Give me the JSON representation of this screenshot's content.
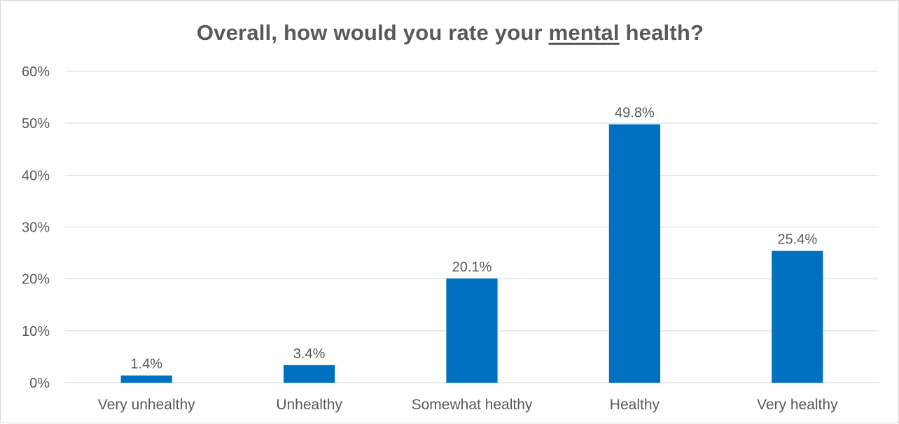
{
  "chart_data": {
    "type": "bar",
    "title_parts": {
      "before": "Overall, how would you rate your ",
      "emphasis": "mental",
      "after": " health?"
    },
    "categories": [
      "Very unhealthy",
      "Unhealthy",
      "Somewhat healthy",
      "Healthy",
      "Very healthy"
    ],
    "values": [
      1.4,
      3.4,
      20.1,
      49.8,
      25.4
    ],
    "data_labels": [
      "1.4%",
      "3.4%",
      "20.1%",
      "49.8%",
      "25.4%"
    ],
    "ylim": [
      0,
      60
    ],
    "yticks": [
      0,
      10,
      20,
      30,
      40,
      50,
      60
    ],
    "ytick_labels": [
      "0%",
      "10%",
      "20%",
      "30%",
      "40%",
      "50%",
      "60%"
    ],
    "grid": true,
    "legend": "none",
    "colors": {
      "bar": "#0070C0",
      "gridline": "#d9d9d9",
      "text": "#595959"
    }
  }
}
